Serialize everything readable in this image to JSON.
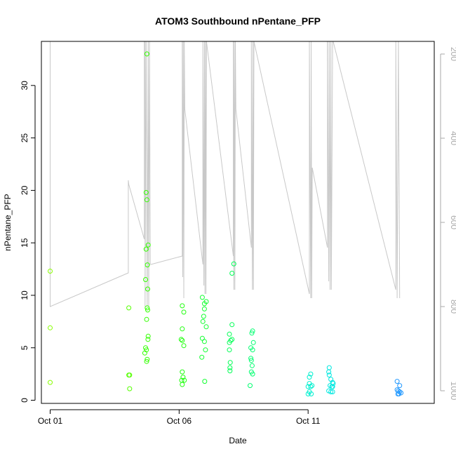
{
  "chart_data": {
    "type": "scatter",
    "title": "ATOM3 Southbound nPentane_PFP",
    "xlabel": "Date",
    "ylabel": "nPentane_PFP",
    "x_ticks": [
      {
        "label": "Oct 01",
        "day": 1
      },
      {
        "label": "Oct 06",
        "day": 6
      },
      {
        "label": "Oct 11",
        "day": 11
      }
    ],
    "xlim": [
      0.66,
      15.89
    ],
    "ylim": [
      -0.3,
      34.2
    ],
    "y_ticks": [
      0,
      5,
      10,
      15,
      20,
      25,
      30
    ],
    "secondary_axis": {
      "ticks": [
        200,
        400,
        600,
        800,
        1000
      ],
      "lim": [
        1030,
        170
      ],
      "color": "#aaaaaa"
    },
    "grid": false,
    "legend": "none",
    "point_colors": {
      "early": "#7fff00",
      "mid": "#00ff40",
      "late": "#00e5d0",
      "end": "#1e90ff"
    },
    "points": [
      {
        "x": 1.0,
        "y": 12.3,
        "c": "#88ff00"
      },
      {
        "x": 1.0,
        "y": 6.9,
        "c": "#88ff00"
      },
      {
        "x": 1.0,
        "y": 1.7,
        "c": "#88ff00"
      },
      {
        "x": 4.05,
        "y": 8.8,
        "c": "#55ff00"
      },
      {
        "x": 4.05,
        "y": 2.4,
        "c": "#55ff00"
      },
      {
        "x": 4.08,
        "y": 2.4,
        "c": "#55ff00"
      },
      {
        "x": 4.08,
        "y": 1.1,
        "c": "#55ff00"
      },
      {
        "x": 4.75,
        "y": 33.0,
        "c": "#33ff00"
      },
      {
        "x": 4.72,
        "y": 19.8,
        "c": "#33ff00"
      },
      {
        "x": 4.75,
        "y": 19.1,
        "c": "#33ff00"
      },
      {
        "x": 4.8,
        "y": 14.8,
        "c": "#33ff00"
      },
      {
        "x": 4.72,
        "y": 14.4,
        "c": "#33ff00"
      },
      {
        "x": 4.77,
        "y": 12.9,
        "c": "#33ff00"
      },
      {
        "x": 4.7,
        "y": 11.5,
        "c": "#33ff00"
      },
      {
        "x": 4.78,
        "y": 10.6,
        "c": "#33ff00"
      },
      {
        "x": 4.76,
        "y": 8.8,
        "c": "#33ff00"
      },
      {
        "x": 4.78,
        "y": 8.6,
        "c": "#33ff00"
      },
      {
        "x": 4.74,
        "y": 7.7,
        "c": "#33ff00"
      },
      {
        "x": 4.8,
        "y": 6.1,
        "c": "#33ff00"
      },
      {
        "x": 4.79,
        "y": 5.8,
        "c": "#33ff00"
      },
      {
        "x": 4.7,
        "y": 5.0,
        "c": "#33ff00"
      },
      {
        "x": 4.73,
        "y": 4.8,
        "c": "#33ff00"
      },
      {
        "x": 4.67,
        "y": 4.5,
        "c": "#33ff00"
      },
      {
        "x": 4.76,
        "y": 3.9,
        "c": "#33ff00"
      },
      {
        "x": 4.74,
        "y": 3.7,
        "c": "#33ff00"
      },
      {
        "x": 6.12,
        "y": 9.0,
        "c": "#22ff10"
      },
      {
        "x": 6.18,
        "y": 8.4,
        "c": "#22ff10"
      },
      {
        "x": 6.12,
        "y": 6.8,
        "c": "#22ff10"
      },
      {
        "x": 6.08,
        "y": 5.8,
        "c": "#22ff10"
      },
      {
        "x": 6.12,
        "y": 5.7,
        "c": "#22ff10"
      },
      {
        "x": 6.18,
        "y": 5.2,
        "c": "#22ff10"
      },
      {
        "x": 6.12,
        "y": 2.7,
        "c": "#22ff10"
      },
      {
        "x": 6.15,
        "y": 2.2,
        "c": "#22ff10"
      },
      {
        "x": 6.2,
        "y": 1.9,
        "c": "#22ff10"
      },
      {
        "x": 6.1,
        "y": 1.9,
        "c": "#22ff10"
      },
      {
        "x": 6.12,
        "y": 1.5,
        "c": "#22ff10"
      },
      {
        "x": 6.9,
        "y": 9.8,
        "c": "#11ff30"
      },
      {
        "x": 7.05,
        "y": 9.4,
        "c": "#11ff30"
      },
      {
        "x": 6.98,
        "y": 9.2,
        "c": "#11ff30"
      },
      {
        "x": 6.98,
        "y": 8.7,
        "c": "#11ff30"
      },
      {
        "x": 6.95,
        "y": 8.0,
        "c": "#11ff30"
      },
      {
        "x": 6.92,
        "y": 7.5,
        "c": "#11ff30"
      },
      {
        "x": 7.05,
        "y": 7.0,
        "c": "#11ff30"
      },
      {
        "x": 6.9,
        "y": 5.9,
        "c": "#11ff30"
      },
      {
        "x": 6.98,
        "y": 5.6,
        "c": "#11ff30"
      },
      {
        "x": 7.02,
        "y": 4.8,
        "c": "#11ff30"
      },
      {
        "x": 6.88,
        "y": 4.1,
        "c": "#11ff30"
      },
      {
        "x": 6.99,
        "y": 1.8,
        "c": "#11ff30"
      },
      {
        "x": 8.12,
        "y": 13.0,
        "c": "#00ff55"
      },
      {
        "x": 8.05,
        "y": 12.1,
        "c": "#00ff55"
      },
      {
        "x": 8.05,
        "y": 7.2,
        "c": "#00ff55"
      },
      {
        "x": 7.95,
        "y": 6.3,
        "c": "#00ff55"
      },
      {
        "x": 8.05,
        "y": 5.8,
        "c": "#00ff55"
      },
      {
        "x": 8.0,
        "y": 5.7,
        "c": "#00ff55"
      },
      {
        "x": 7.95,
        "y": 5.5,
        "c": "#00ff55"
      },
      {
        "x": 7.95,
        "y": 4.8,
        "c": "#00ff55"
      },
      {
        "x": 7.98,
        "y": 3.6,
        "c": "#00ff55"
      },
      {
        "x": 7.97,
        "y": 3.1,
        "c": "#00ff55"
      },
      {
        "x": 7.97,
        "y": 2.8,
        "c": "#00ff55"
      },
      {
        "x": 8.85,
        "y": 6.6,
        "c": "#00ff70"
      },
      {
        "x": 8.82,
        "y": 6.4,
        "c": "#00ff70"
      },
      {
        "x": 8.88,
        "y": 5.5,
        "c": "#00ff70"
      },
      {
        "x": 8.78,
        "y": 5.0,
        "c": "#00ff70"
      },
      {
        "x": 8.85,
        "y": 4.8,
        "c": "#00ff70"
      },
      {
        "x": 8.78,
        "y": 4.0,
        "c": "#00ff70"
      },
      {
        "x": 8.8,
        "y": 3.8,
        "c": "#00ff70"
      },
      {
        "x": 8.83,
        "y": 3.3,
        "c": "#00ff70"
      },
      {
        "x": 8.8,
        "y": 2.7,
        "c": "#00ff70"
      },
      {
        "x": 8.85,
        "y": 2.5,
        "c": "#00ff70"
      },
      {
        "x": 8.75,
        "y": 1.4,
        "c": "#00ff70"
      },
      {
        "x": 11.1,
        "y": 2.5,
        "c": "#00f0d0"
      },
      {
        "x": 11.05,
        "y": 2.2,
        "c": "#00f0d0"
      },
      {
        "x": 11.05,
        "y": 1.6,
        "c": "#00f0d0"
      },
      {
        "x": 11.15,
        "y": 1.4,
        "c": "#00f0d0"
      },
      {
        "x": 11.0,
        "y": 1.3,
        "c": "#00f0d0"
      },
      {
        "x": 11.1,
        "y": 1.3,
        "c": "#00f0d0"
      },
      {
        "x": 11.05,
        "y": 0.8,
        "c": "#00f0d0"
      },
      {
        "x": 11.0,
        "y": 0.6,
        "c": "#00f0d0"
      },
      {
        "x": 11.12,
        "y": 0.6,
        "c": "#00f0d0"
      },
      {
        "x": 11.82,
        "y": 3.1,
        "c": "#00e8e0"
      },
      {
        "x": 11.8,
        "y": 2.7,
        "c": "#00e8e0"
      },
      {
        "x": 11.82,
        "y": 2.4,
        "c": "#00e8e0"
      },
      {
        "x": 11.88,
        "y": 2.0,
        "c": "#00e8e0"
      },
      {
        "x": 11.95,
        "y": 1.7,
        "c": "#00e8e0"
      },
      {
        "x": 11.97,
        "y": 1.6,
        "c": "#00e8e0"
      },
      {
        "x": 11.85,
        "y": 1.4,
        "c": "#00e8e0"
      },
      {
        "x": 11.92,
        "y": 1.3,
        "c": "#00e8e0"
      },
      {
        "x": 11.95,
        "y": 1.3,
        "c": "#00e8e0"
      },
      {
        "x": 11.8,
        "y": 0.9,
        "c": "#00e8e0"
      },
      {
        "x": 11.88,
        "y": 0.8,
        "c": "#00e8e0"
      },
      {
        "x": 11.95,
        "y": 0.8,
        "c": "#00e8e0"
      },
      {
        "x": 14.45,
        "y": 1.8,
        "c": "#2299ff"
      },
      {
        "x": 14.55,
        "y": 1.4,
        "c": "#2299ff"
      },
      {
        "x": 14.45,
        "y": 1.0,
        "c": "#2299ff"
      },
      {
        "x": 14.5,
        "y": 0.9,
        "c": "#2299ff"
      },
      {
        "x": 14.55,
        "y": 0.8,
        "c": "#2299ff"
      },
      {
        "x": 14.6,
        "y": 0.7,
        "c": "#2299ff"
      },
      {
        "x": 14.48,
        "y": 0.6,
        "c": "#2299ff"
      },
      {
        "x": 14.52,
        "y": 0.6,
        "c": "#2299ff"
      }
    ],
    "altitude_color": "#c8c8c8",
    "altitude_segments": [
      [
        [
          1.0,
          170
        ],
        [
          1.0,
          800
        ],
        [
          4.03,
          720
        ],
        [
          4.03,
          500
        ],
        [
          4.05,
          510
        ],
        [
          4.65,
          640
        ],
        [
          4.65,
          170
        ]
      ],
      [
        [
          4.68,
          170
        ],
        [
          4.68,
          800
        ],
        [
          4.72,
          170
        ],
        [
          4.76,
          800
        ],
        [
          4.8,
          170
        ],
        [
          4.82,
          800
        ],
        [
          4.85,
          170
        ],
        [
          4.88,
          700
        ]
      ],
      [
        [
          4.9,
          700
        ],
        [
          6.12,
          680
        ],
        [
          6.12,
          170
        ],
        [
          6.14,
          730
        ],
        [
          6.16,
          170
        ],
        [
          6.18,
          780
        ],
        [
          6.2,
          170
        ],
        [
          6.22,
          330
        ]
      ],
      [
        [
          6.22,
          330
        ],
        [
          6.92,
          700
        ],
        [
          6.92,
          170
        ],
        [
          6.96,
          750
        ],
        [
          6.98,
          170
        ],
        [
          7.0,
          770
        ],
        [
          7.02,
          170
        ],
        [
          7.04,
          770
        ],
        [
          7.06,
          170
        ]
      ],
      [
        [
          7.06,
          170
        ],
        [
          8.1,
          680
        ],
        [
          8.1,
          170
        ],
        [
          8.12,
          760
        ],
        [
          8.14,
          170
        ],
        [
          8.16,
          760
        ],
        [
          8.18,
          170
        ],
        [
          8.2,
          330
        ]
      ],
      [
        [
          8.2,
          330
        ],
        [
          8.8,
          660
        ],
        [
          8.8,
          170
        ],
        [
          8.84,
          760
        ],
        [
          8.86,
          170
        ],
        [
          8.88,
          760
        ],
        [
          8.9,
          170
        ]
      ],
      [
        [
          8.9,
          170
        ],
        [
          11.05,
          770
        ],
        [
          11.05,
          170
        ],
        [
          11.1,
          780
        ],
        [
          11.12,
          170
        ],
        [
          11.14,
          780
        ],
        [
          11.16,
          470
        ],
        [
          11.75,
          660
        ],
        [
          11.75,
          170
        ]
      ],
      [
        [
          11.75,
          170
        ],
        [
          11.8,
          740
        ],
        [
          11.82,
          170
        ],
        [
          11.85,
          760
        ],
        [
          11.88,
          170
        ],
        [
          11.9,
          760
        ],
        [
          11.95,
          170
        ],
        [
          11.97,
          170
        ]
      ],
      [
        [
          11.97,
          170
        ],
        [
          14.4,
          760
        ],
        [
          14.4,
          170
        ],
        [
          14.45,
          780
        ],
        [
          14.5,
          170
        ],
        [
          14.55,
          780
        ]
      ]
    ]
  }
}
